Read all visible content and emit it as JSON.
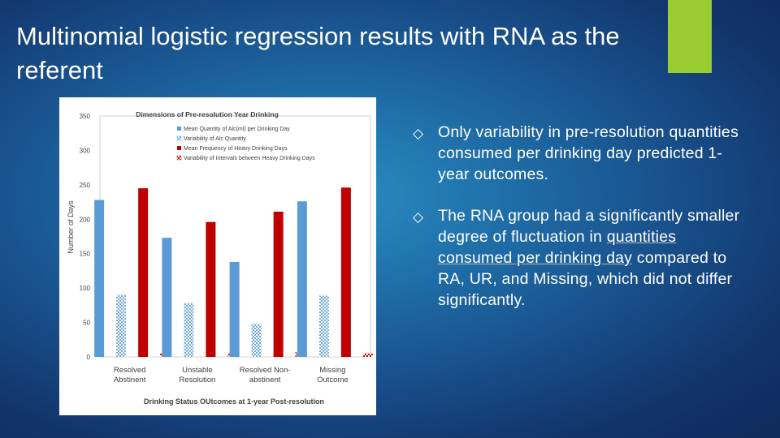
{
  "slide": {
    "title": "Multinomial logistic regression results with RNA as the referent",
    "accent_color": "#9acd32"
  },
  "bullets": [
    {
      "icon": "hollow-diamond-icon",
      "marker": "◇",
      "text": "Only variability in pre-resolution quantities consumed per drinking day predicted 1-year outcomes."
    },
    {
      "icon": "hollow-diamond-icon",
      "marker": "◇",
      "text_before": "The RNA group had a significantly smaller degree of fluctuation in ",
      "text_highlight": "quantities consumed per drinking day",
      "text_after": " compared to RA, UR, and Missing, which did not differ significantly."
    }
  ],
  "chart_data": {
    "type": "bar",
    "title": "Dimensions of Pre-resolution Year Drinking",
    "xlabel": "Drinking Status OUtcomes at 1-year Post-resolution",
    "ylabel": "Number of Days",
    "ylim": [
      0,
      350
    ],
    "yticks": [
      0,
      50,
      100,
      150,
      200,
      250,
      300,
      350
    ],
    "grid": false,
    "legend_position": "top-right",
    "categories": [
      [
        "Resolved",
        "Abstinent"
      ],
      [
        "Unstable",
        "Resolution"
      ],
      [
        "Resolved Non-",
        "abstinent"
      ],
      [
        "Missing",
        "Outcome"
      ]
    ],
    "series": [
      {
        "name": "Mean Quantity of Alc(ml) per Drinking Day",
        "color": "#5b9bd5",
        "pattern": "solid",
        "values": [
          228,
          173,
          138,
          226
        ]
      },
      {
        "name": "Variability of Alc Quantity",
        "color": "#7fb2e0",
        "pattern": "checker",
        "values": [
          90,
          78,
          48,
          89
        ]
      },
      {
        "name": "Mean Frequency of Heavy Drinking Days",
        "color": "#c00000",
        "pattern": "solid",
        "values": [
          245,
          196,
          211,
          246
        ]
      },
      {
        "name": "Variability of Intervals between Heavy Drinking Days",
        "color": "#d9534f",
        "pattern": "checker",
        "values": [
          5,
          5,
          7,
          5
        ]
      }
    ]
  }
}
